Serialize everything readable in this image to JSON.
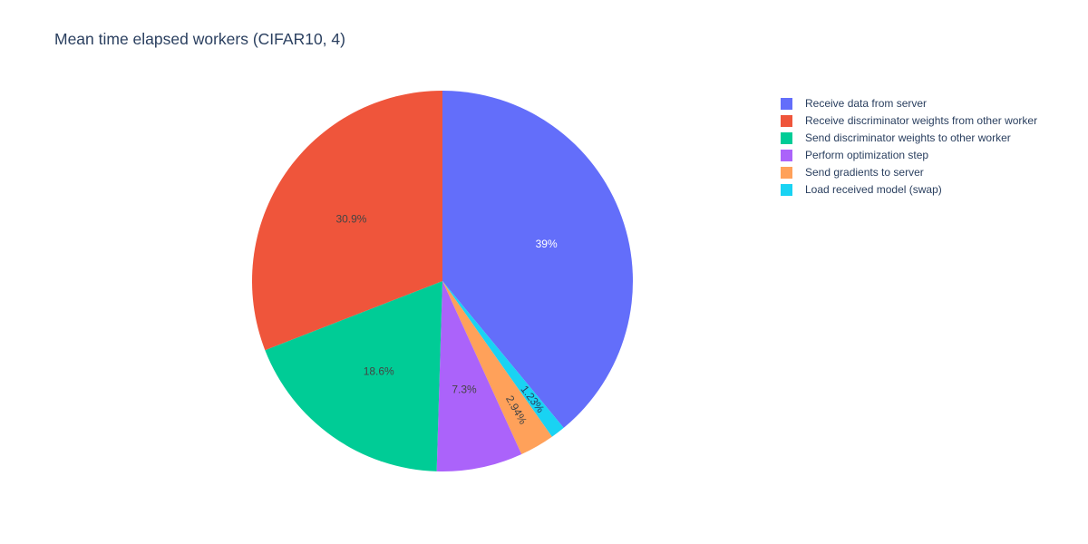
{
  "chart_data": {
    "type": "pie",
    "title": "Mean time elapsed workers (CIFAR10, 4)",
    "slices": [
      {
        "label": "Receive data from server",
        "percent": 39,
        "text": "39%",
        "color": "#636efa",
        "text_color": "#ffffff"
      },
      {
        "label": "Load received model (swap)",
        "percent": 1.23,
        "text": "1.23%",
        "color": "#19d3f3",
        "text_color": "#2a3f5f"
      },
      {
        "label": "Send gradients to server",
        "percent": 2.94,
        "text": "2.94%",
        "color": "#ffa15a",
        "text_color": "#444444"
      },
      {
        "label": "Perform optimization step",
        "percent": 7.3,
        "text": "7.3%",
        "color": "#ab63fa",
        "text_color": "#444444"
      },
      {
        "label": "Send discriminator weights to other worker",
        "percent": 18.6,
        "text": "18.6%",
        "color": "#00cc96",
        "text_color": "#444444"
      },
      {
        "label": "Receive discriminator weights from other worker",
        "percent": 30.9,
        "text": "30.9%",
        "color": "#ef553b",
        "text_color": "#444444"
      }
    ],
    "legend": {
      "position": "top-right",
      "entries": [
        {
          "label": "Receive data from server",
          "color": "#636efa"
        },
        {
          "label": "Receive discriminator weights from other worker",
          "color": "#ef553b"
        },
        {
          "label": "Send discriminator weights to other worker",
          "color": "#00cc96"
        },
        {
          "label": "Perform optimization step",
          "color": "#ab63fa"
        },
        {
          "label": "Send gradients to server",
          "color": "#ffa15a"
        },
        {
          "label": "Load received model (swap)",
          "color": "#19d3f3"
        }
      ]
    }
  }
}
